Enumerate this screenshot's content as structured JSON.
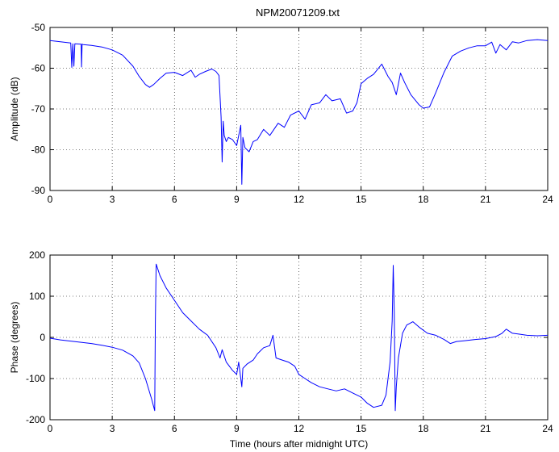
{
  "figure": {
    "title": "NPM20071209.txt"
  },
  "chart_data": [
    {
      "type": "line",
      "title": "NPM20071209.txt",
      "xlabel": "",
      "ylabel": "Amplitude (dB)",
      "xlim": [
        0,
        24
      ],
      "ylim": [
        -90,
        -50
      ],
      "xticks": [
        0,
        3,
        6,
        9,
        12,
        15,
        18,
        21,
        24
      ],
      "yticks": [
        -90,
        -80,
        -70,
        -60,
        -50
      ],
      "grid": true,
      "color": "#0000ff",
      "x": [
        0,
        0.5,
        1.0,
        1.05,
        1.1,
        1.15,
        1.2,
        1.5,
        1.52,
        1.55,
        1.6,
        2.0,
        2.5,
        3.0,
        3.5,
        4.0,
        4.3,
        4.6,
        4.8,
        5.0,
        5.3,
        5.6,
        6.0,
        6.4,
        6.8,
        7.0,
        7.2,
        7.5,
        7.8,
        8.0,
        8.15,
        8.25,
        8.3,
        8.35,
        8.4,
        8.5,
        8.6,
        8.8,
        9.0,
        9.2,
        9.25,
        9.3,
        9.4,
        9.6,
        9.8,
        10.0,
        10.3,
        10.6,
        11.0,
        11.3,
        11.6,
        12.0,
        12.3,
        12.6,
        13.0,
        13.3,
        13.6,
        14.0,
        14.3,
        14.6,
        14.8,
        15.0,
        15.3,
        15.6,
        16.0,
        16.3,
        16.5,
        16.7,
        16.9,
        17.1,
        17.4,
        17.8,
        18.0,
        18.3,
        18.6,
        19.0,
        19.4,
        19.8,
        20.2,
        20.6,
        21.0,
        21.3,
        21.5,
        21.7,
        22.0,
        22.3,
        22.6,
        23.0,
        23.5,
        24.0
      ],
      "y": [
        -53.2,
        -53.5,
        -53.8,
        -59.8,
        -54.0,
        -59.5,
        -54.0,
        -54.1,
        -59.7,
        -54.1,
        -54.2,
        -54.4,
        -54.8,
        -55.5,
        -56.8,
        -59.5,
        -62.0,
        -64.0,
        -64.7,
        -64.0,
        -62.5,
        -61.2,
        -61.0,
        -61.8,
        -60.5,
        -62.2,
        -61.5,
        -60.8,
        -60.2,
        -60.8,
        -61.8,
        -72.0,
        -83.0,
        -73.0,
        -76.5,
        -78.0,
        -77.0,
        -77.5,
        -79.0,
        -74.0,
        -88.5,
        -77.0,
        -79.5,
        -80.5,
        -78.0,
        -77.5,
        -75.0,
        -76.5,
        -73.5,
        -74.5,
        -71.5,
        -70.5,
        -72.5,
        -69.0,
        -68.5,
        -66.5,
        -68.0,
        -67.5,
        -71.0,
        -70.5,
        -68.5,
        -63.8,
        -62.5,
        -61.5,
        -59.0,
        -62.0,
        -63.5,
        -66.5,
        -61.2,
        -63.5,
        -66.5,
        -69.0,
        -69.8,
        -69.5,
        -66.0,
        -61.0,
        -57.0,
        -55.8,
        -55.0,
        -54.5,
        -54.5,
        -53.6,
        -56.3,
        -54.2,
        -55.5,
        -53.5,
        -53.8,
        -53.2,
        -53.0,
        -53.2
      ]
    },
    {
      "type": "line",
      "title": "",
      "xlabel": "Time (hours after midnight UTC)",
      "ylabel": "Phase (degrees)",
      "xlim": [
        0,
        24
      ],
      "ylim": [
        -200,
        200
      ],
      "xticks": [
        0,
        3,
        6,
        9,
        12,
        15,
        18,
        21,
        24
      ],
      "yticks": [
        -200,
        -100,
        0,
        100,
        200
      ],
      "grid": true,
      "color": "#0000ff",
      "x": [
        0,
        0.5,
        1.0,
        1.5,
        2.0,
        2.5,
        3.0,
        3.5,
        4.0,
        4.3,
        4.6,
        4.9,
        5.05,
        5.08,
        5.12,
        5.3,
        5.6,
        6.0,
        6.4,
        6.8,
        7.2,
        7.6,
        8.0,
        8.2,
        8.3,
        8.5,
        8.8,
        9.0,
        9.1,
        9.2,
        9.25,
        9.3,
        9.5,
        9.8,
        10.0,
        10.3,
        10.6,
        10.75,
        10.9,
        11.2,
        11.5,
        11.8,
        12.0,
        12.3,
        12.6,
        13.0,
        13.4,
        13.8,
        14.2,
        14.6,
        15.0,
        15.3,
        15.6,
        16.0,
        16.2,
        16.4,
        16.5,
        16.55,
        16.6,
        16.65,
        16.7,
        16.8,
        17.0,
        17.2,
        17.5,
        17.8,
        18.2,
        18.6,
        19.0,
        19.3,
        19.6,
        20.0,
        20.5,
        21.0,
        21.5,
        21.8,
        22.0,
        22.3,
        22.6,
        23.0,
        23.5,
        24.0
      ],
      "y": [
        -2,
        -6,
        -9,
        -12,
        -15,
        -19,
        -24,
        -31,
        -45,
        -62,
        -100,
        -150,
        -178,
        40,
        178,
        150,
        120,
        90,
        60,
        40,
        20,
        5,
        -25,
        -50,
        -30,
        -60,
        -80,
        -90,
        -60,
        -100,
        -120,
        -75,
        -65,
        -55,
        -40,
        -25,
        -20,
        5,
        -50,
        -55,
        -60,
        -70,
        -90,
        -100,
        -110,
        -120,
        -125,
        -130,
        -125,
        -135,
        -145,
        -160,
        -170,
        -165,
        -140,
        -60,
        40,
        175,
        60,
        -178,
        -120,
        -50,
        10,
        30,
        38,
        25,
        10,
        5,
        -5,
        -15,
        -10,
        -8,
        -5,
        -3,
        2,
        10,
        20,
        10,
        8,
        5,
        4,
        5
      ]
    }
  ]
}
